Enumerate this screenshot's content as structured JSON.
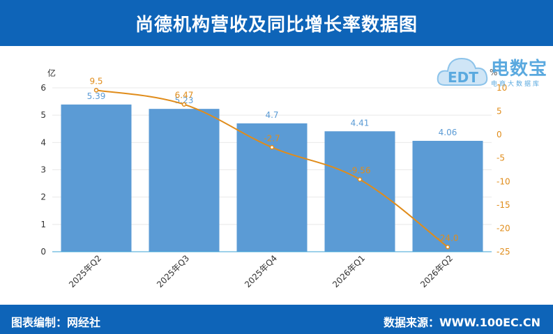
{
  "header": {
    "title": "尚德机构营收及同比增长率数据图"
  },
  "footer": {
    "left": "图表编制：网经社",
    "right": "数据来源：WWW.100EC.CN"
  },
  "logo": {
    "main_text": "电数宝",
    "sub_text": "电商大数据库",
    "badge_text": "EDT"
  },
  "colors": {
    "header_bg": "#0e64b8",
    "bar": "#5b9bd5",
    "line": "#e08c1a",
    "left_axis_label": "#333333",
    "right_axis_label": "#e08c1a"
  },
  "chart_data": {
    "type": "bar",
    "categories": [
      "2025年Q2",
      "2025年Q3",
      "2025年Q4",
      "2026年Q1",
      "2026年Q2"
    ],
    "series": [
      {
        "values": [
          5.39,
          5.23,
          4.7,
          4.41,
          4.06
        ],
        "axis": "left",
        "kind": "bar"
      },
      {
        "values": [
          9.5,
          6.47,
          -2.7,
          -9.56,
          -24.0
        ],
        "axis": "right",
        "kind": "line"
      }
    ],
    "data_labels_bar": [
      "5.39",
      "5.23",
      "4.7",
      "4.41",
      "4.06"
    ],
    "data_labels_line": [
      "9.5",
      "6.47",
      "-2.7",
      "-9.56",
      "-24.0"
    ],
    "y_left": {
      "unit": "亿",
      "range": [
        0,
        6
      ],
      "ticks": [
        "0",
        "1",
        "2",
        "3",
        "4",
        "5",
        "6"
      ]
    },
    "y_right": {
      "unit": "%",
      "range": [
        -25,
        10
      ],
      "ticks": [
        "-25",
        "-20",
        "-15",
        "-10",
        "-5",
        "0",
        "5",
        "10"
      ]
    },
    "grid": true
  }
}
